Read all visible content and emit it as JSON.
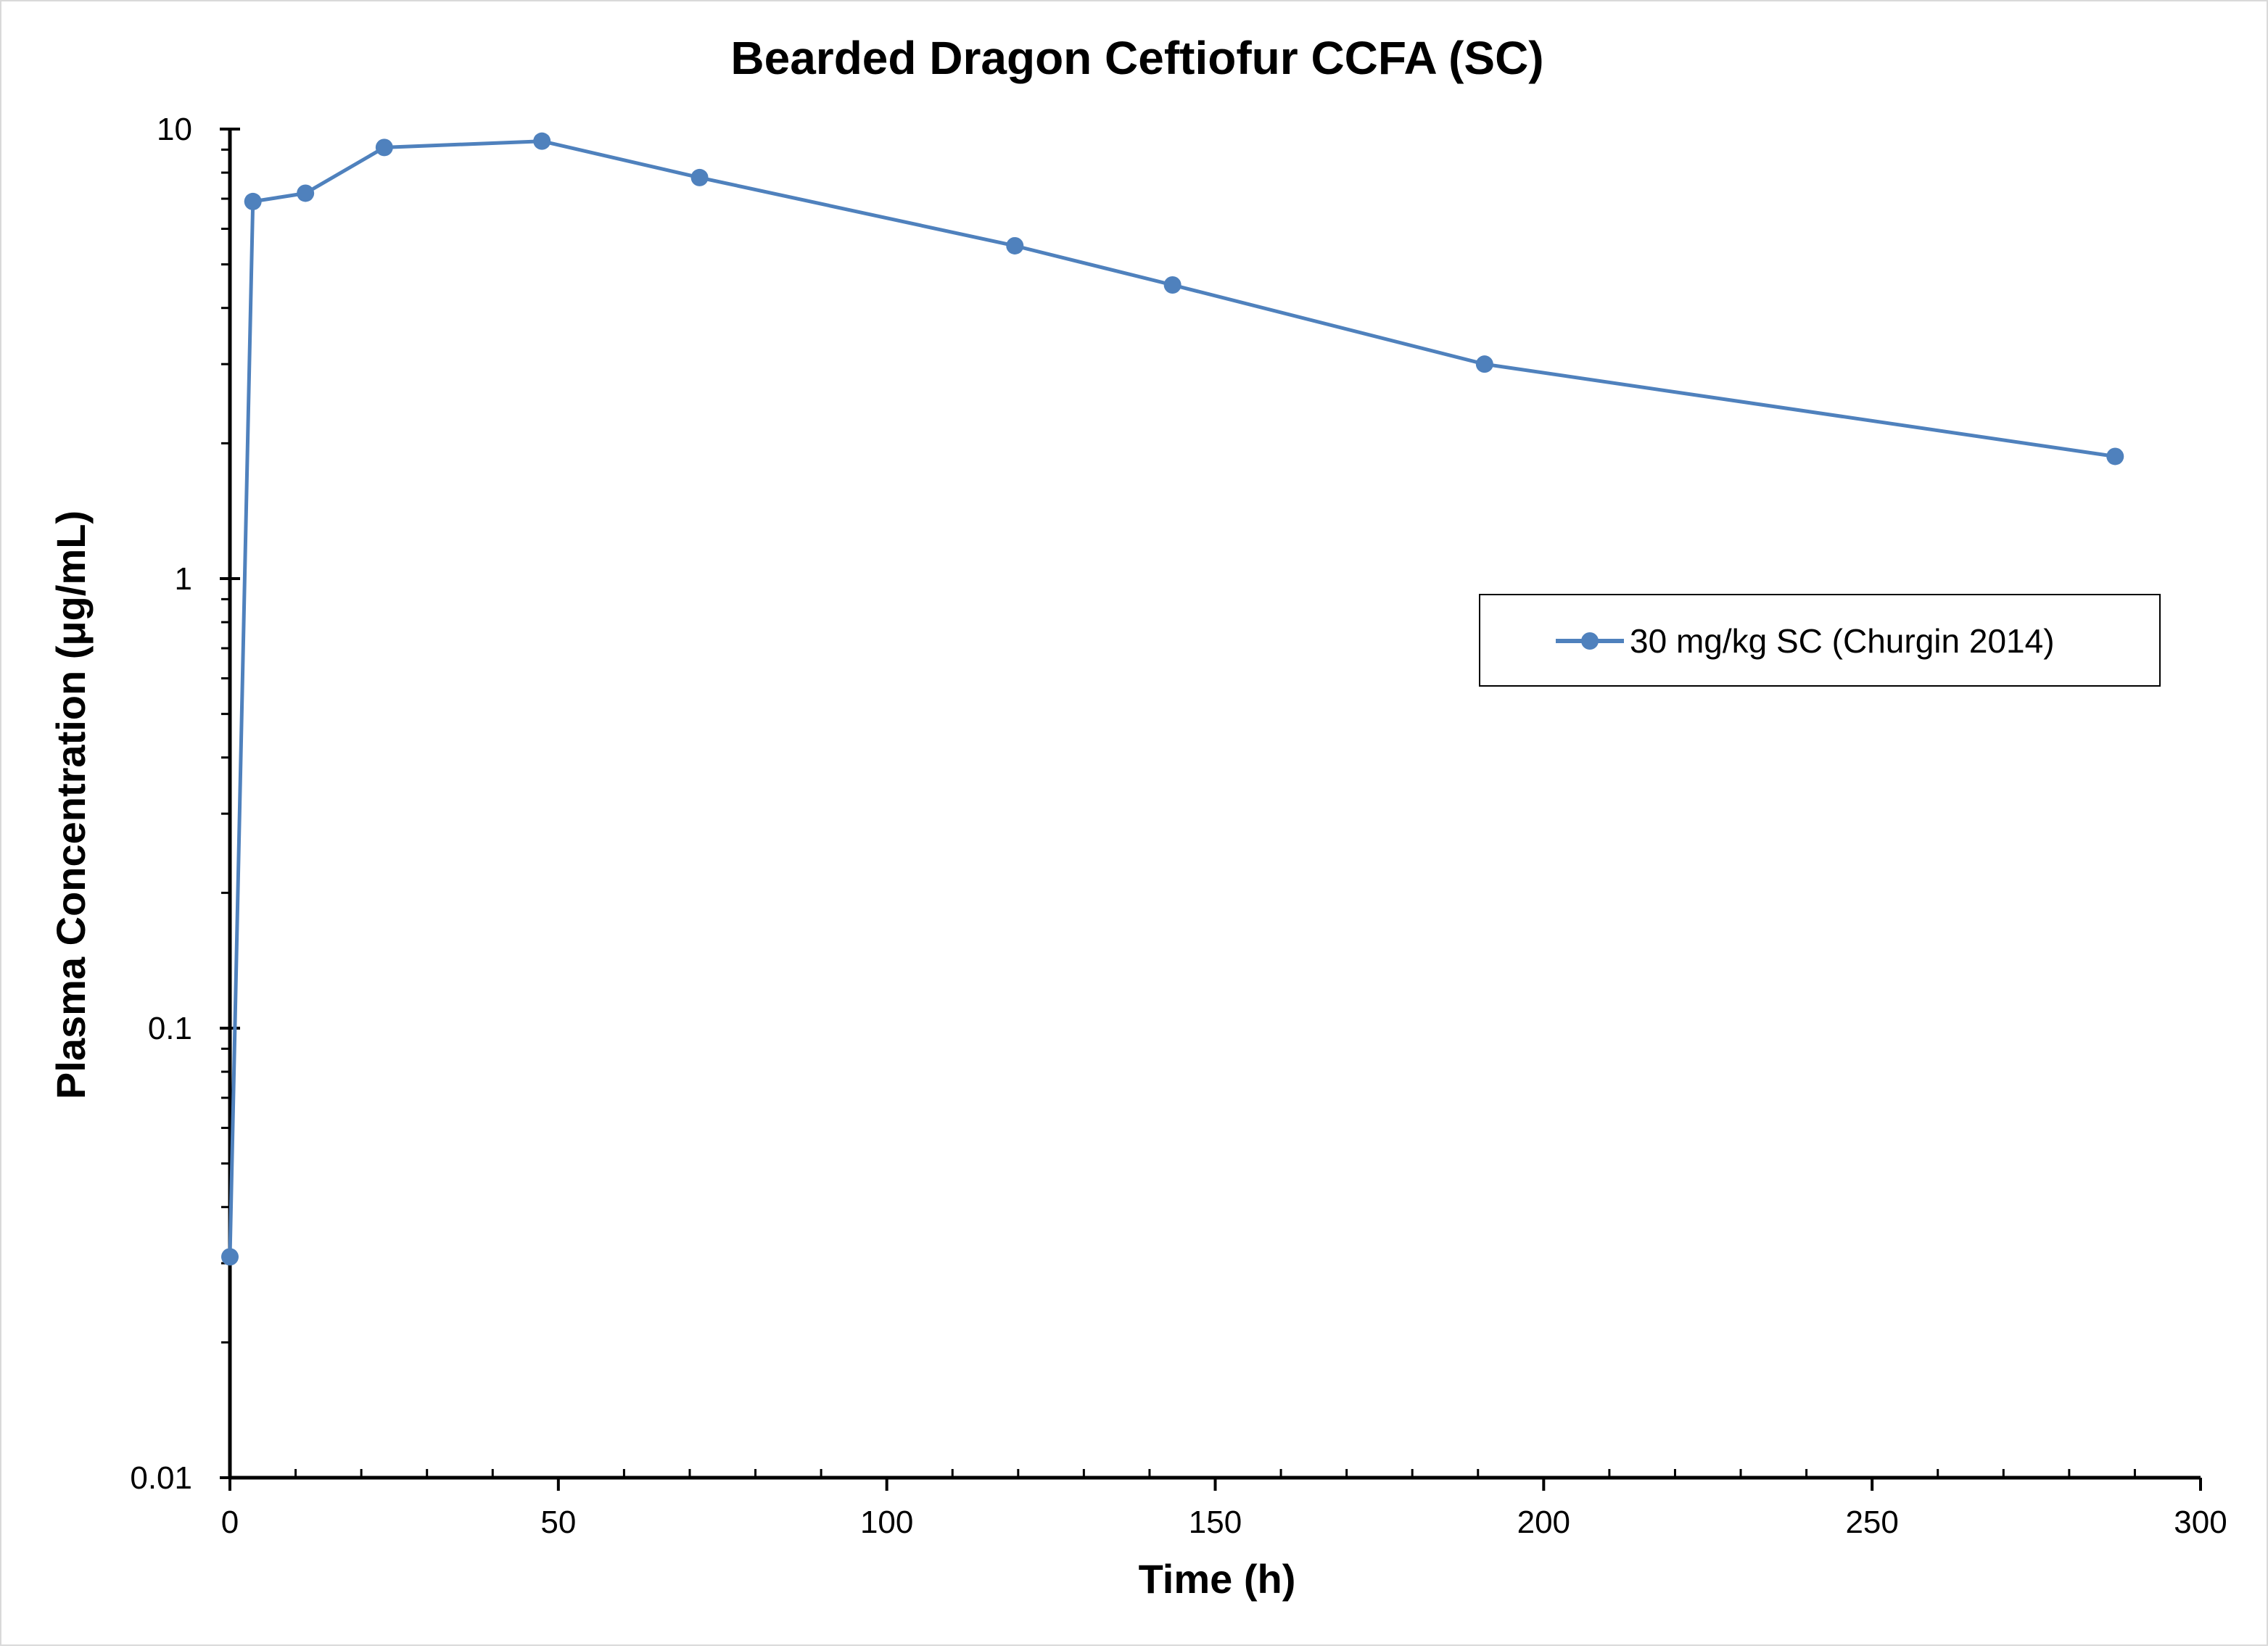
{
  "chart_data": {
    "type": "line",
    "title": "Bearded Dragon Ceftiofur CCFA (SC)",
    "xlabel": "Time (h)",
    "ylabel": "Plasma Concentration (μg/mL)",
    "xlim": [
      0,
      300
    ],
    "ylim": [
      0.01,
      10
    ],
    "yscale": "log",
    "xticks": [
      0,
      50,
      100,
      150,
      200,
      250,
      300
    ],
    "xtick_labels": [
      "0",
      "50",
      "100",
      "150",
      "200",
      "250",
      "300"
    ],
    "yticks": [
      0.01,
      0.1,
      1,
      10
    ],
    "ytick_labels": [
      "0.01",
      "0.1",
      "1",
      "10"
    ],
    "grid": false,
    "legend_position": "right",
    "series": [
      {
        "name": "30 mg/kg SC (Churgin 2014)",
        "color": "#4f81bd",
        "marker": "circle",
        "x": [
          0,
          3.5,
          11.5,
          23.5,
          47.5,
          71.5,
          119.5,
          143.5,
          191,
          287
        ],
        "y": [
          0.031,
          6.9,
          7.2,
          9.1,
          9.4,
          7.8,
          5.5,
          4.5,
          3.0,
          1.87
        ]
      }
    ]
  }
}
